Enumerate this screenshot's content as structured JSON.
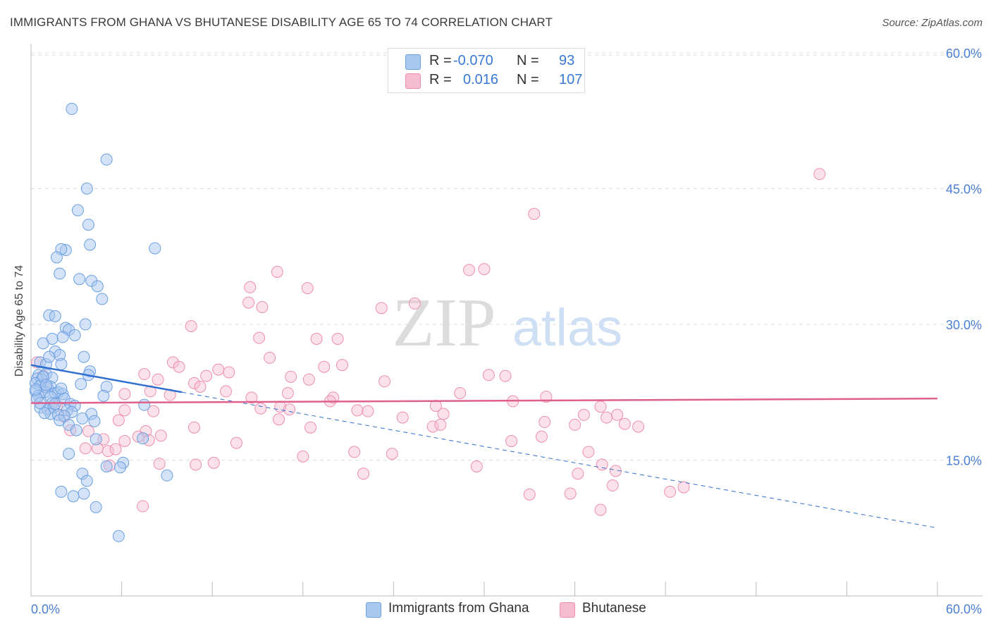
{
  "title": "IMMIGRANTS FROM GHANA VS BHUTANESE DISABILITY AGE 65 TO 74 CORRELATION CHART",
  "source": "Source: ZipAtlas.com",
  "watermark": {
    "part1": "ZIP",
    "part2": "atlas"
  },
  "legend": {
    "series1": {
      "r_label": "R = ",
      "r_value": "-0.070",
      "n_label": "N = ",
      "n_value": "93"
    },
    "series2": {
      "r_label": "R = ",
      "r_value": "0.016",
      "n_label": "N = ",
      "n_value": "107"
    }
  },
  "bottom_legend": {
    "series1": "Immigrants from Ghana",
    "series2": "Bhutanese"
  },
  "colors": {
    "ghana_fill": "#a9c8ef",
    "ghana_stroke": "#6a9fe0",
    "ghana_line": "#2f6fd0",
    "bhutan_fill": "#f6bcd0",
    "bhutan_stroke": "#ec8fb0",
    "bhutan_line": "#e0608c",
    "tick": "#4a7fd4",
    "grid": "#dddddd"
  },
  "chart_data": {
    "type": "scatter",
    "title": "IMMIGRANTS FROM GHANA VS BHUTANESE DISABILITY AGE 65 TO 74 CORRELATION CHART",
    "xlabel": "",
    "ylabel": "Disability Age 65 to 74",
    "xlim": [
      0,
      60
    ],
    "ylim": [
      0,
      61
    ],
    "x_tick_labels": [
      "0.0%",
      "60.0%"
    ],
    "y_ticks": [
      15,
      30,
      45,
      60
    ],
    "y_tick_labels": [
      "15.0%",
      "30.0%",
      "45.0%",
      "60.0%"
    ],
    "series": [
      {
        "name": "Immigrants from Ghana",
        "R": -0.07,
        "N": 93,
        "trend_solid": [
          [
            0,
            25.5
          ],
          [
            10,
            22.5
          ]
        ],
        "trend_dashed": [
          [
            10,
            22.5
          ],
          [
            60,
            7.5
          ]
        ],
        "points": [
          [
            2.7,
            53.8
          ],
          [
            5.0,
            48.2
          ],
          [
            3.7,
            45.0
          ],
          [
            3.1,
            42.6
          ],
          [
            3.8,
            41.0
          ],
          [
            2.3,
            38.2
          ],
          [
            2.0,
            38.3
          ],
          [
            8.2,
            38.4
          ],
          [
            3.9,
            38.8
          ],
          [
            1.7,
            37.4
          ],
          [
            1.9,
            35.6
          ],
          [
            3.2,
            35.0
          ],
          [
            4.0,
            34.8
          ],
          [
            4.4,
            34.2
          ],
          [
            4.7,
            32.8
          ],
          [
            1.2,
            31.0
          ],
          [
            1.6,
            30.9
          ],
          [
            3.6,
            30.0
          ],
          [
            2.3,
            29.6
          ],
          [
            2.5,
            29.4
          ],
          [
            2.1,
            28.6
          ],
          [
            2.9,
            28.8
          ],
          [
            1.4,
            28.4
          ],
          [
            0.8,
            27.9
          ],
          [
            1.6,
            27.0
          ],
          [
            1.9,
            26.6
          ],
          [
            3.5,
            26.4
          ],
          [
            0.6,
            25.8
          ],
          [
            1.0,
            25.6
          ],
          [
            2.0,
            25.6
          ],
          [
            3.9,
            24.8
          ],
          [
            0.5,
            24.4
          ],
          [
            1.0,
            24.5
          ],
          [
            0.4,
            24.0
          ],
          [
            0.7,
            23.9
          ],
          [
            1.4,
            24.1
          ],
          [
            3.8,
            24.4
          ],
          [
            0.3,
            23.5
          ],
          [
            0.6,
            23.2
          ],
          [
            1.1,
            23.0
          ],
          [
            1.3,
            23.1
          ],
          [
            3.3,
            23.4
          ],
          [
            5.0,
            23.1
          ],
          [
            0.3,
            22.6
          ],
          [
            0.9,
            22.5
          ],
          [
            1.6,
            22.4
          ],
          [
            1.8,
            22.5
          ],
          [
            2.1,
            22.3
          ],
          [
            0.5,
            22.1
          ],
          [
            1.3,
            22.0
          ],
          [
            2.2,
            21.8
          ],
          [
            0.4,
            21.8
          ],
          [
            4.8,
            22.1
          ],
          [
            1.4,
            21.3
          ],
          [
            2.6,
            21.2
          ],
          [
            2.9,
            21.0
          ],
          [
            7.5,
            21.1
          ],
          [
            0.6,
            20.8
          ],
          [
            1.1,
            20.6
          ],
          [
            1.5,
            20.8
          ],
          [
            2.4,
            20.5
          ],
          [
            2.7,
            20.3
          ],
          [
            1.3,
            20.1
          ],
          [
            1.8,
            20.0
          ],
          [
            2.2,
            19.9
          ],
          [
            0.9,
            20.2
          ],
          [
            4.0,
            20.1
          ],
          [
            1.9,
            19.4
          ],
          [
            3.4,
            19.6
          ],
          [
            4.2,
            19.3
          ],
          [
            2.5,
            18.9
          ],
          [
            3.0,
            18.3
          ],
          [
            7.4,
            17.4
          ],
          [
            4.3,
            17.3
          ],
          [
            2.5,
            15.7
          ],
          [
            6.1,
            14.7
          ],
          [
            5.0,
            14.3
          ],
          [
            5.9,
            14.2
          ],
          [
            3.4,
            13.5
          ],
          [
            9.0,
            13.3
          ],
          [
            3.7,
            12.7
          ],
          [
            2.0,
            11.5
          ],
          [
            3.5,
            11.3
          ],
          [
            2.8,
            11.0
          ],
          [
            4.3,
            9.8
          ],
          [
            5.8,
            6.6
          ],
          [
            0.8,
            24.2
          ],
          [
            1.2,
            26.4
          ],
          [
            0.3,
            22.8
          ],
          [
            1.0,
            23.3
          ],
          [
            2.0,
            22.9
          ],
          [
            0.6,
            21.3
          ],
          [
            1.6,
            21.2
          ]
        ]
      },
      {
        "name": "Bhutanese",
        "R": 0.016,
        "N": 107,
        "trend_solid": [
          [
            0,
            21.3
          ],
          [
            60,
            21.8
          ]
        ],
        "points": [
          [
            52.2,
            46.6
          ],
          [
            33.3,
            42.2
          ],
          [
            16.3,
            35.8
          ],
          [
            29.0,
            36.0
          ],
          [
            30.0,
            36.1
          ],
          [
            14.5,
            34.1
          ],
          [
            18.3,
            34.0
          ],
          [
            14.4,
            32.4
          ],
          [
            15.3,
            31.9
          ],
          [
            23.2,
            31.8
          ],
          [
            25.4,
            32.3
          ],
          [
            10.6,
            29.8
          ],
          [
            15.1,
            28.5
          ],
          [
            18.9,
            28.4
          ],
          [
            20.3,
            28.4
          ],
          [
            15.8,
            26.3
          ],
          [
            9.4,
            25.8
          ],
          [
            9.8,
            25.3
          ],
          [
            12.4,
            25.0
          ],
          [
            13.1,
            24.7
          ],
          [
            19.4,
            25.3
          ],
          [
            20.6,
            25.5
          ],
          [
            11.6,
            24.3
          ],
          [
            17.2,
            24.2
          ],
          [
            18.4,
            23.9
          ],
          [
            30.3,
            24.4
          ],
          [
            31.4,
            24.3
          ],
          [
            10.8,
            23.5
          ],
          [
            7.5,
            24.5
          ],
          [
            8.4,
            23.9
          ],
          [
            11.2,
            23.1
          ],
          [
            23.4,
            23.7
          ],
          [
            7.9,
            22.6
          ],
          [
            12.9,
            22.6
          ],
          [
            17.0,
            22.4
          ],
          [
            28.4,
            22.4
          ],
          [
            6.2,
            22.3
          ],
          [
            9.2,
            22.2
          ],
          [
            14.6,
            21.9
          ],
          [
            20.0,
            21.9
          ],
          [
            19.8,
            21.5
          ],
          [
            34.1,
            22.0
          ],
          [
            31.9,
            21.5
          ],
          [
            26.8,
            21.0
          ],
          [
            15.2,
            20.7
          ],
          [
            16.5,
            20.9
          ],
          [
            17.1,
            20.6
          ],
          [
            21.6,
            20.5
          ],
          [
            22.3,
            20.4
          ],
          [
            37.7,
            20.9
          ],
          [
            38.8,
            20.0
          ],
          [
            6.2,
            20.5
          ],
          [
            8.1,
            20.4
          ],
          [
            27.3,
            20.1
          ],
          [
            36.6,
            20.0
          ],
          [
            38.1,
            19.7
          ],
          [
            39.3,
            19.0
          ],
          [
            24.6,
            19.7
          ],
          [
            5.8,
            19.4
          ],
          [
            16.4,
            19.5
          ],
          [
            34.0,
            19.2
          ],
          [
            36.0,
            18.9
          ],
          [
            10.8,
            18.6
          ],
          [
            18.5,
            18.6
          ],
          [
            26.6,
            18.7
          ],
          [
            27.1,
            18.9
          ],
          [
            40.2,
            18.7
          ],
          [
            7.6,
            18.2
          ],
          [
            3.8,
            18.2
          ],
          [
            4.4,
            16.3
          ],
          [
            6.2,
            17.1
          ],
          [
            7.1,
            17.6
          ],
          [
            8.6,
            17.7
          ],
          [
            33.8,
            17.6
          ],
          [
            4.8,
            17.3
          ],
          [
            7.8,
            17.2
          ],
          [
            13.6,
            16.9
          ],
          [
            31.8,
            17.1
          ],
          [
            3.6,
            16.3
          ],
          [
            5.1,
            16.0
          ],
          [
            18.0,
            15.4
          ],
          [
            21.4,
            15.9
          ],
          [
            23.9,
            15.7
          ],
          [
            36.9,
            15.9
          ],
          [
            8.5,
            14.6
          ],
          [
            10.9,
            14.5
          ],
          [
            12.1,
            14.7
          ],
          [
            5.2,
            14.4
          ],
          [
            29.5,
            14.3
          ],
          [
            37.8,
            14.5
          ],
          [
            36.2,
            13.5
          ],
          [
            22.0,
            13.5
          ],
          [
            38.7,
            13.8
          ],
          [
            38.5,
            12.2
          ],
          [
            43.2,
            12.0
          ],
          [
            35.7,
            11.3
          ],
          [
            42.3,
            11.5
          ],
          [
            33.0,
            11.2
          ],
          [
            37.7,
            9.5
          ],
          [
            7.4,
            9.9
          ],
          [
            1.0,
            23.1
          ],
          [
            1.7,
            21.0
          ],
          [
            2.2,
            19.8
          ],
          [
            2.6,
            18.3
          ],
          [
            0.4,
            25.8
          ],
          [
            0.8,
            24.3
          ],
          [
            5.6,
            16.2
          ]
        ]
      }
    ]
  }
}
